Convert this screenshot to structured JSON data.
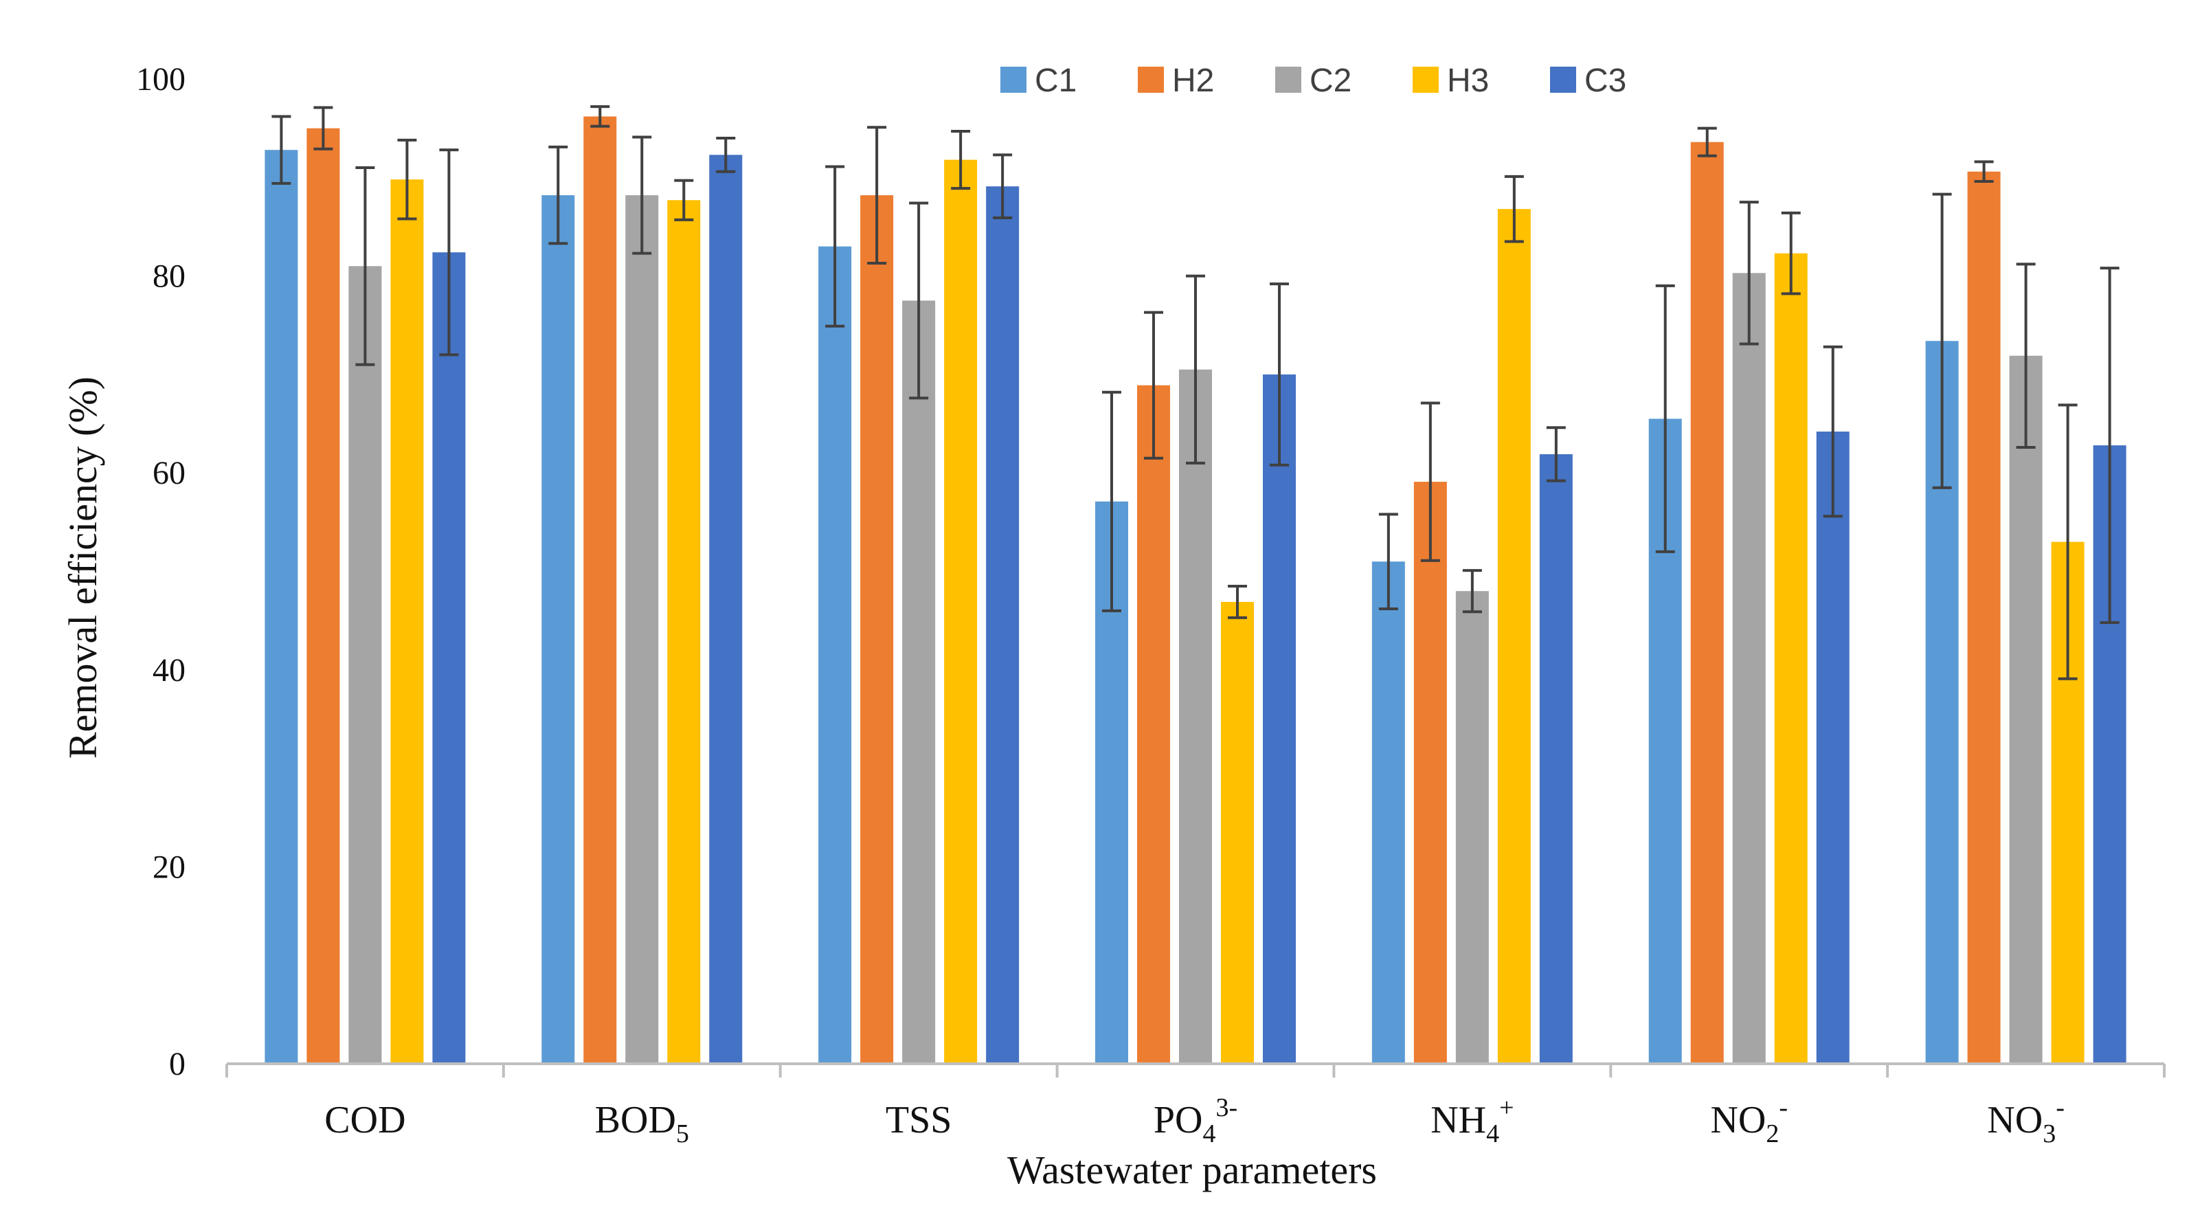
{
  "chart_data": {
    "type": "bar",
    "title": "",
    "xlabel": "Wastewater parameters",
    "ylabel": "Removal efficiency (%)",
    "ylim": [
      0,
      100
    ],
    "yticks": [
      0,
      20,
      40,
      60,
      80,
      100
    ],
    "grid": false,
    "legend_position": "top",
    "categories": [
      {
        "base": "COD",
        "sub": "",
        "sup": ""
      },
      {
        "base": "BOD",
        "sub": "5",
        "sup": ""
      },
      {
        "base": "TSS",
        "sub": "",
        "sup": ""
      },
      {
        "base": "PO",
        "sub": "4",
        "sup": "3-"
      },
      {
        "base": "NH",
        "sub": "4",
        "sup": "+"
      },
      {
        "base": "NO",
        "sub": "2",
        "sup": "-"
      },
      {
        "base": "NO",
        "sub": "3",
        "sup": "-"
      }
    ],
    "series": [
      {
        "name": "C1",
        "color": "#5B9BD5",
        "values": [
          92.8,
          88.2,
          83.0,
          57.1,
          51.0,
          65.5,
          73.4
        ],
        "errors": [
          3.4,
          4.9,
          8.1,
          11.1,
          4.8,
          13.5,
          14.9
        ]
      },
      {
        "name": "H2",
        "color": "#ED7D31",
        "values": [
          95.0,
          96.2,
          88.2,
          68.9,
          59.1,
          93.6,
          90.6
        ],
        "errors": [
          2.1,
          1.0,
          6.9,
          7.4,
          8.0,
          1.4,
          1.0
        ]
      },
      {
        "name": "C2",
        "color": "#A5A5A5",
        "values": [
          81.0,
          88.2,
          77.5,
          70.5,
          48.0,
          80.3,
          71.9
        ],
        "errors": [
          10.0,
          5.9,
          9.9,
          9.5,
          2.1,
          7.2,
          9.3
        ]
      },
      {
        "name": "H3",
        "color": "#FFC000",
        "values": [
          89.8,
          87.7,
          91.8,
          46.9,
          86.8,
          82.3,
          53.0
        ],
        "errors": [
          4.0,
          2.0,
          2.9,
          1.6,
          3.3,
          4.1,
          13.9
        ]
      },
      {
        "name": "C3",
        "color": "#4472C4",
        "values": [
          82.4,
          92.3,
          89.1,
          70.0,
          61.9,
          64.2,
          62.8
        ],
        "errors": [
          10.4,
          1.7,
          3.2,
          9.2,
          2.7,
          8.6,
          18.0
        ]
      }
    ]
  }
}
